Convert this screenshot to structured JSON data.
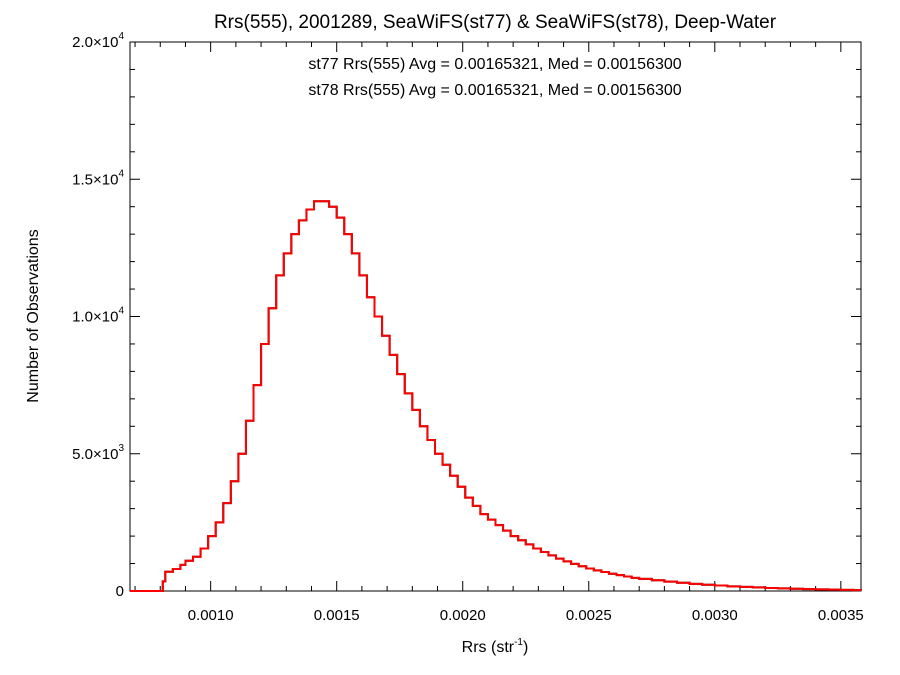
{
  "chart_data": {
    "type": "histogram",
    "title": "Rrs(555), 2001289, SeaWiFS(st77) & SeaWiFS(st78), Deep-Water",
    "xlabel": {
      "base": "Rrs (str",
      "sup": "-1",
      "close": ")"
    },
    "ylabel": "Number of Observations",
    "xlim": [
      0.00068,
      0.00358
    ],
    "ylim": [
      0,
      20000
    ],
    "xticks": [
      {
        "value": 0.001,
        "label": "0.0010"
      },
      {
        "value": 0.0015,
        "label": "0.0015"
      },
      {
        "value": 0.002,
        "label": "0.0020"
      },
      {
        "value": 0.0025,
        "label": "0.0025"
      },
      {
        "value": 0.003,
        "label": "0.0030"
      },
      {
        "value": 0.0035,
        "label": "0.0035"
      }
    ],
    "yticks": [
      {
        "value": 0,
        "mant": "0",
        "exp": ""
      },
      {
        "value": 5000,
        "mant": "5.0×10",
        "exp": "3"
      },
      {
        "value": 10000,
        "mant": "1.0×10",
        "exp": "4"
      },
      {
        "value": 15000,
        "mant": "1.5×10",
        "exp": "4"
      },
      {
        "value": 20000,
        "mant": "2.0×10",
        "exp": "4"
      }
    ],
    "annotations": [
      {
        "text": "st77 Rrs(555) Avg = 0.00165321, Med = 0.00156300",
        "color": "#000000"
      },
      {
        "text": "st78 Rrs(555) Avg = 0.00165321, Med = 0.00156300",
        "color": "#ff0000"
      }
    ],
    "series": [
      {
        "name": "st77",
        "color": "#000000",
        "points": [
          [
            0.00068,
            0
          ],
          [
            0.0008,
            0
          ],
          [
            0.00081,
            350
          ],
          [
            0.00082,
            700
          ],
          [
            0.00085,
            800
          ],
          [
            0.00088,
            950
          ],
          [
            0.0009,
            1100
          ],
          [
            0.00093,
            1250
          ],
          [
            0.00096,
            1550
          ],
          [
            0.00099,
            2000
          ],
          [
            0.00102,
            2500
          ],
          [
            0.00105,
            3200
          ],
          [
            0.00108,
            4000
          ],
          [
            0.00111,
            5000
          ],
          [
            0.00114,
            6200
          ],
          [
            0.00117,
            7500
          ],
          [
            0.0012,
            9000
          ],
          [
            0.00123,
            10300
          ],
          [
            0.00126,
            11500
          ],
          [
            0.00129,
            12300
          ],
          [
            0.00132,
            13000
          ],
          [
            0.00135,
            13500
          ],
          [
            0.00138,
            13900
          ],
          [
            0.00141,
            14200
          ],
          [
            0.00144,
            14200
          ],
          [
            0.00147,
            14000
          ],
          [
            0.0015,
            13600
          ],
          [
            0.00153,
            13000
          ],
          [
            0.00156,
            12300
          ],
          [
            0.00159,
            11500
          ],
          [
            0.00162,
            10700
          ],
          [
            0.00165,
            10000
          ],
          [
            0.00168,
            9300
          ],
          [
            0.00171,
            8600
          ],
          [
            0.00174,
            7900
          ],
          [
            0.00177,
            7200
          ],
          [
            0.0018,
            6600
          ],
          [
            0.00183,
            6000
          ],
          [
            0.00186,
            5500
          ],
          [
            0.00189,
            5000
          ],
          [
            0.00192,
            4600
          ],
          [
            0.00195,
            4200
          ],
          [
            0.00198,
            3800
          ],
          [
            0.00201,
            3400
          ],
          [
            0.00204,
            3100
          ],
          [
            0.00207,
            2800
          ],
          [
            0.0021,
            2600
          ],
          [
            0.00213,
            2400
          ],
          [
            0.00216,
            2200
          ],
          [
            0.00219,
            2000
          ],
          [
            0.00222,
            1850
          ],
          [
            0.00225,
            1700
          ],
          [
            0.00228,
            1550
          ],
          [
            0.00231,
            1420
          ],
          [
            0.00234,
            1300
          ],
          [
            0.00237,
            1180
          ],
          [
            0.0024,
            1080
          ],
          [
            0.00243,
            990
          ],
          [
            0.00246,
            900
          ],
          [
            0.00249,
            820
          ],
          [
            0.00252,
            750
          ],
          [
            0.00255,
            690
          ],
          [
            0.00258,
            630
          ],
          [
            0.00261,
            580
          ],
          [
            0.00264,
            530
          ],
          [
            0.00267,
            480
          ],
          [
            0.0027,
            440
          ],
          [
            0.00275,
            390
          ],
          [
            0.0028,
            340
          ],
          [
            0.00285,
            300
          ],
          [
            0.0029,
            260
          ],
          [
            0.00295,
            230
          ],
          [
            0.003,
            200
          ],
          [
            0.00305,
            170
          ],
          [
            0.0031,
            150
          ],
          [
            0.00315,
            130
          ],
          [
            0.0032,
            110
          ],
          [
            0.00325,
            95
          ],
          [
            0.0033,
            80
          ],
          [
            0.00335,
            70
          ],
          [
            0.0034,
            60
          ],
          [
            0.00345,
            50
          ],
          [
            0.0035,
            40
          ],
          [
            0.00355,
            30
          ],
          [
            0.00358,
            25
          ]
        ]
      },
      {
        "name": "st78",
        "color": "#ff0000",
        "points": [
          [
            0.00068,
            0
          ],
          [
            0.0008,
            0
          ],
          [
            0.00081,
            350
          ],
          [
            0.00082,
            700
          ],
          [
            0.00085,
            800
          ],
          [
            0.00088,
            950
          ],
          [
            0.0009,
            1100
          ],
          [
            0.00093,
            1250
          ],
          [
            0.00096,
            1550
          ],
          [
            0.00099,
            2000
          ],
          [
            0.00102,
            2500
          ],
          [
            0.00105,
            3200
          ],
          [
            0.00108,
            4000
          ],
          [
            0.00111,
            5000
          ],
          [
            0.00114,
            6200
          ],
          [
            0.00117,
            7500
          ],
          [
            0.0012,
            9000
          ],
          [
            0.00123,
            10300
          ],
          [
            0.00126,
            11500
          ],
          [
            0.00129,
            12300
          ],
          [
            0.00132,
            13000
          ],
          [
            0.00135,
            13500
          ],
          [
            0.00138,
            13900
          ],
          [
            0.00141,
            14200
          ],
          [
            0.00144,
            14200
          ],
          [
            0.00147,
            14000
          ],
          [
            0.0015,
            13600
          ],
          [
            0.00153,
            13000
          ],
          [
            0.00156,
            12300
          ],
          [
            0.00159,
            11500
          ],
          [
            0.00162,
            10700
          ],
          [
            0.00165,
            10000
          ],
          [
            0.00168,
            9300
          ],
          [
            0.00171,
            8600
          ],
          [
            0.00174,
            7900
          ],
          [
            0.00177,
            7200
          ],
          [
            0.0018,
            6600
          ],
          [
            0.00183,
            6000
          ],
          [
            0.00186,
            5500
          ],
          [
            0.00189,
            5000
          ],
          [
            0.00192,
            4600
          ],
          [
            0.00195,
            4200
          ],
          [
            0.00198,
            3800
          ],
          [
            0.00201,
            3400
          ],
          [
            0.00204,
            3100
          ],
          [
            0.00207,
            2800
          ],
          [
            0.0021,
            2600
          ],
          [
            0.00213,
            2400
          ],
          [
            0.00216,
            2200
          ],
          [
            0.00219,
            2000
          ],
          [
            0.00222,
            1850
          ],
          [
            0.00225,
            1700
          ],
          [
            0.00228,
            1550
          ],
          [
            0.00231,
            1420
          ],
          [
            0.00234,
            1300
          ],
          [
            0.00237,
            1180
          ],
          [
            0.0024,
            1080
          ],
          [
            0.00243,
            990
          ],
          [
            0.00246,
            900
          ],
          [
            0.00249,
            820
          ],
          [
            0.00252,
            750
          ],
          [
            0.00255,
            690
          ],
          [
            0.00258,
            630
          ],
          [
            0.00261,
            580
          ],
          [
            0.00264,
            530
          ],
          [
            0.00267,
            480
          ],
          [
            0.0027,
            440
          ],
          [
            0.00275,
            390
          ],
          [
            0.0028,
            340
          ],
          [
            0.00285,
            300
          ],
          [
            0.0029,
            260
          ],
          [
            0.00295,
            230
          ],
          [
            0.003,
            200
          ],
          [
            0.00305,
            170
          ],
          [
            0.0031,
            150
          ],
          [
            0.00315,
            130
          ],
          [
            0.0032,
            110
          ],
          [
            0.00325,
            95
          ],
          [
            0.0033,
            80
          ],
          [
            0.00335,
            70
          ],
          [
            0.0034,
            60
          ],
          [
            0.00345,
            50
          ],
          [
            0.0035,
            40
          ],
          [
            0.00355,
            30
          ],
          [
            0.00358,
            25
          ]
        ]
      }
    ]
  }
}
